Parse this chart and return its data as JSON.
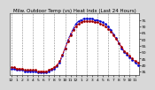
{
  "title": "Milw. Outdoor Temp (vs) Heat Indx (Last 24 Hours)",
  "title_fontsize": 4.0,
  "bg_color": "#d8d8d8",
  "plot_bg_color": "#ffffff",
  "line_temp_color": "#dd0000",
  "line_heat_color": "#0000cc",
  "line_black_color": "#000000",
  "ylim": [
    32,
    80
  ],
  "yticks": [
    35,
    40,
    45,
    50,
    55,
    60,
    65,
    70,
    75
  ],
  "ytick_labels": [
    "35",
    "40",
    "45",
    "50",
    "55",
    "60",
    "65",
    "70",
    "75"
  ],
  "n_points": 48,
  "temp_values": [
    38,
    38,
    37,
    37,
    37,
    36,
    36,
    36,
    36,
    36,
    35,
    35,
    35,
    35,
    36,
    37,
    38,
    40,
    43,
    48,
    53,
    58,
    63,
    67,
    70,
    72,
    73,
    74,
    74,
    74,
    74,
    73,
    73,
    72,
    71,
    70,
    68,
    66,
    63,
    60,
    57,
    54,
    51,
    49,
    47,
    45,
    43,
    42
  ],
  "heat_values": [
    37,
    37,
    36,
    36,
    36,
    35,
    35,
    35,
    35,
    35,
    34,
    34,
    34,
    34,
    35,
    36,
    37,
    39,
    42,
    47,
    53,
    59,
    64,
    68,
    72,
    74,
    75,
    76,
    76,
    76,
    76,
    75,
    75,
    74,
    73,
    72,
    70,
    67,
    64,
    61,
    57,
    53,
    50,
    48,
    46,
    44,
    42,
    40
  ],
  "black_values": [
    38,
    38,
    37,
    37,
    37,
    36,
    36,
    36,
    36,
    36,
    35,
    35,
    35,
    35,
    36,
    37,
    38,
    40,
    43,
    48,
    53,
    58,
    63,
    67,
    70,
    72,
    73,
    74,
    74,
    74,
    74,
    73,
    73,
    72,
    71,
    70,
    68,
    66,
    63,
    60,
    57,
    54,
    51,
    49,
    47,
    45,
    43,
    42
  ],
  "x_tick_indices": [
    0,
    2,
    4,
    6,
    8,
    10,
    12,
    14,
    16,
    18,
    20,
    22,
    24,
    26,
    28,
    30,
    32,
    34,
    36,
    38,
    40,
    42,
    44,
    46
  ],
  "x_tick_labels": [
    "12",
    "1",
    "2",
    "3",
    "4",
    "5",
    "6",
    "7",
    "8",
    "9",
    "10",
    "11",
    "12",
    "1",
    "2",
    "3",
    "4",
    "5",
    "6",
    "7",
    "8",
    "9",
    "10",
    "11"
  ],
  "grid_x_indices": [
    0,
    4,
    8,
    12,
    16,
    20,
    24,
    28,
    32,
    36,
    40,
    44
  ],
  "tick_fontsize": 3.2,
  "line_width": 0.7,
  "marker_size": 1.8,
  "grid_color": "#888888",
  "grid_lw": 0.4
}
